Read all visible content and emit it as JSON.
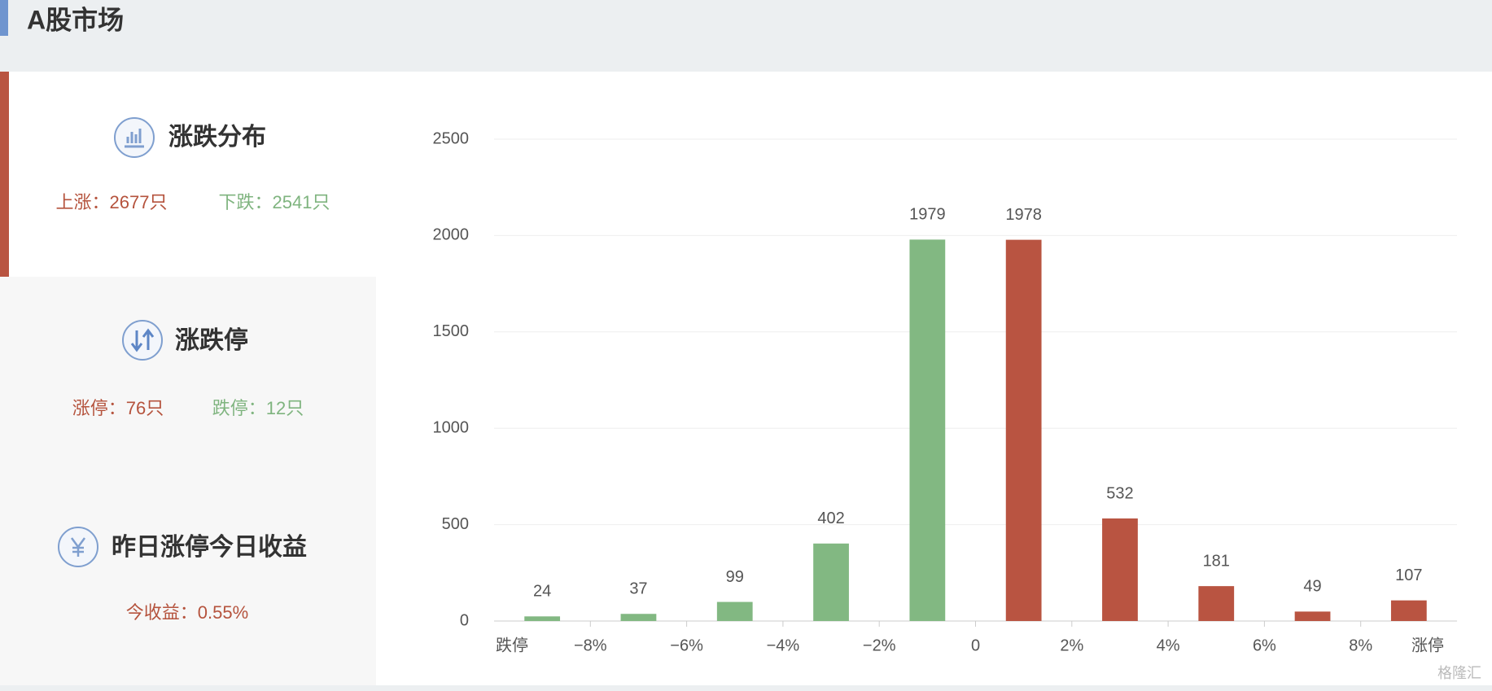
{
  "header": {
    "title": "A股市场"
  },
  "panels": [
    {
      "title": "涨跌分布",
      "stats": [
        "上涨：2677只",
        "下跌：2541只"
      ]
    },
    {
      "title": "涨跌停",
      "stats": [
        "涨停：76只",
        "跌停：12只"
      ]
    },
    {
      "title": "昨日涨停今日收益",
      "stats": [
        "今收益：0.55%"
      ]
    }
  ],
  "watermark": "格隆汇",
  "chart_data": {
    "type": "histogram",
    "bins": [
      "跌停",
      "−8%",
      "−6%",
      "−4%",
      "−2%",
      "0",
      "2%",
      "4%",
      "6%",
      "8%",
      "涨停"
    ],
    "values": [
      24,
      37,
      99,
      402,
      1979,
      1978,
      532,
      181,
      49,
      107
    ],
    "colors": [
      "#82b882",
      "#82b882",
      "#82b882",
      "#82b882",
      "#82b882",
      "#b95441",
      "#b95441",
      "#b95441",
      "#b95441",
      "#b95441"
    ],
    "ylim": [
      0,
      2500
    ],
    "yticks": [
      0,
      500,
      1000,
      1500,
      2000,
      2500
    ],
    "grid": true
  }
}
